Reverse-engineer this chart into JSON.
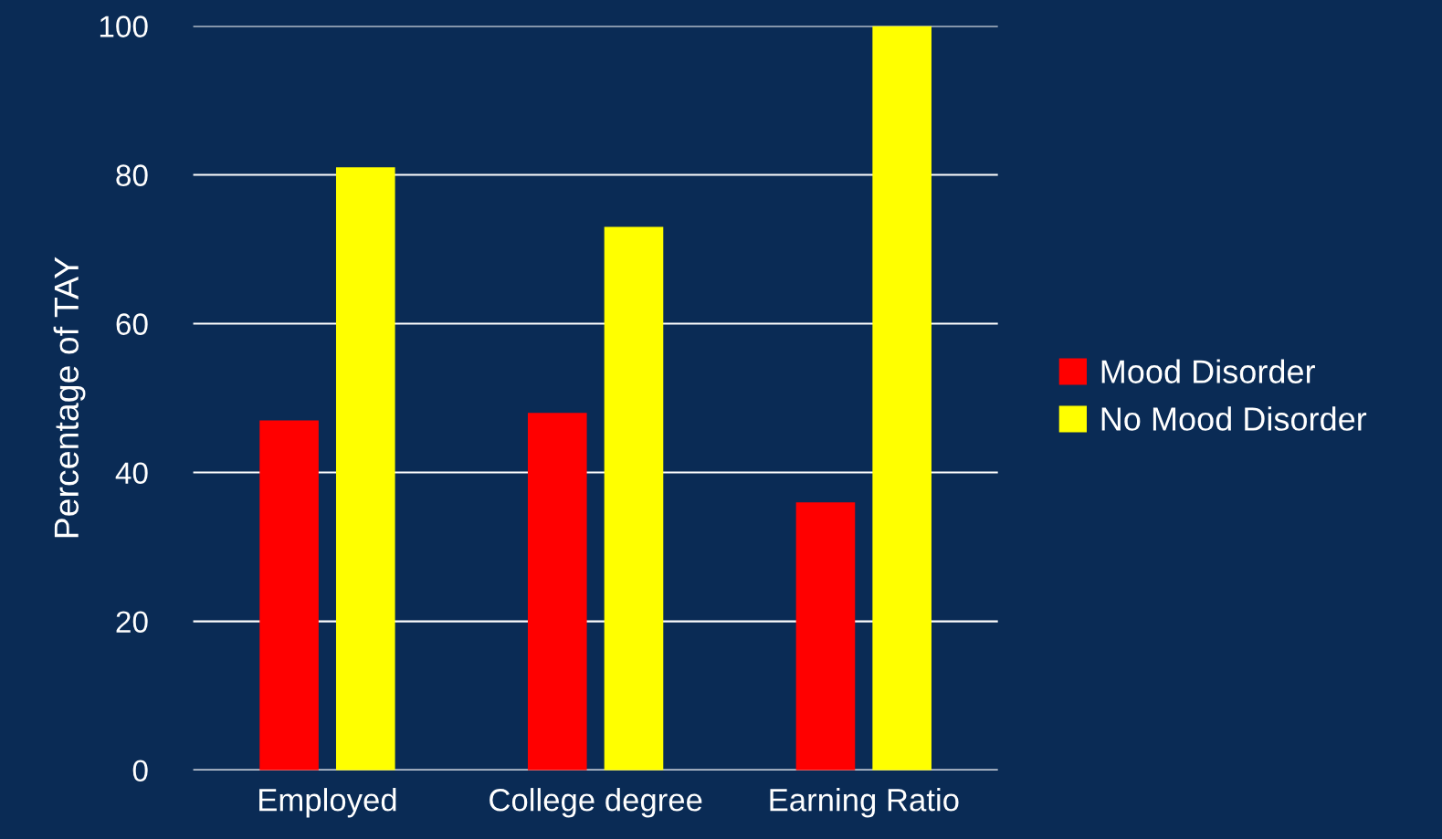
{
  "chart_data": {
    "type": "bar",
    "ylabel": "Percentage of TAY",
    "categories": [
      "Employed",
      "College degree",
      "Earning Ratio"
    ],
    "series": [
      {
        "name": "Mood Disorder",
        "color": "#ff0000",
        "values": [
          47,
          48,
          36
        ]
      },
      {
        "name": "No Mood Disorder",
        "color": "#ffff00",
        "values": [
          81,
          73,
          100
        ]
      }
    ],
    "ylim": [
      0,
      100
    ],
    "yticks": [
      0,
      20,
      40,
      60,
      80,
      100
    ],
    "grid": "y",
    "legend": "right"
  }
}
